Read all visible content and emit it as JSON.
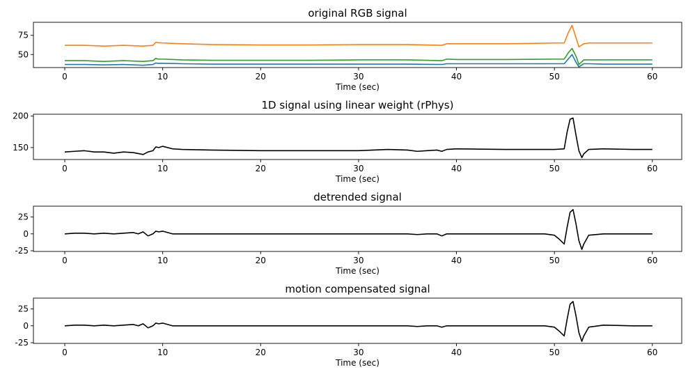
{
  "chart_data": [
    {
      "type": "line",
      "title": "original RGB signal",
      "xlabel": "Time (sec)",
      "ylabel": "",
      "xlim": [
        -3.2,
        63
      ],
      "ylim": [
        33,
        92
      ],
      "xticks": [
        0,
        10,
        20,
        30,
        40,
        50,
        60
      ],
      "yticks": [
        50,
        75
      ],
      "grid": false,
      "series": [
        {
          "color": "#1f77b4",
          "x": [
            0,
            2,
            4,
            6,
            8,
            9,
            9.3,
            9.5,
            10,
            12,
            15,
            20,
            25,
            30,
            35,
            38.5,
            39,
            40,
            45,
            50,
            51,
            51.4,
            51.8,
            52.2,
            52.5,
            53,
            53.5,
            55,
            58,
            60
          ],
          "y": [
            37,
            37,
            36.5,
            37,
            36,
            37,
            39,
            38.5,
            38.5,
            38,
            37.5,
            37.5,
            37.5,
            37.5,
            37.5,
            37,
            38,
            38,
            38,
            38,
            38,
            44,
            50,
            40,
            34,
            38,
            38,
            37.5,
            37.5,
            37.5
          ]
        },
        {
          "color": "#2ca02c",
          "x": [
            0,
            2,
            4,
            6,
            8,
            9,
            9.3,
            9.5,
            10,
            12,
            15,
            20,
            25,
            30,
            35,
            38.5,
            39,
            40,
            45,
            50,
            51,
            51.4,
            51.8,
            52.2,
            52.5,
            53,
            53.5,
            55,
            58,
            60
          ],
          "y": [
            42,
            42,
            41,
            42,
            41,
            42,
            45,
            44,
            44,
            43,
            42.5,
            42.5,
            42.5,
            43,
            43,
            42,
            44,
            43.5,
            43.5,
            44,
            44,
            52,
            58,
            48,
            37,
            43,
            43,
            43,
            43,
            43
          ]
        },
        {
          "color": "#ff7f0e",
          "x": [
            0,
            2,
            4,
            6,
            8,
            9,
            9.3,
            9.5,
            10,
            12,
            15,
            20,
            25,
            30,
            35,
            38.5,
            39,
            40,
            45,
            50,
            51,
            51.4,
            51.8,
            52.2,
            52.5,
            53,
            53.5,
            55,
            58,
            60
          ],
          "y": [
            62,
            62,
            61,
            62,
            61,
            62,
            66,
            65.5,
            65,
            64,
            63,
            62.5,
            62.5,
            63,
            63,
            62,
            64,
            64,
            64,
            65,
            65,
            78,
            88,
            72,
            60,
            64,
            65,
            65,
            65,
            65
          ]
        }
      ]
    },
    {
      "type": "line",
      "title": "1D signal using linear weight (rPhys)",
      "xlabel": "Time (sec)",
      "ylabel": "",
      "xlim": [
        -3.2,
        63
      ],
      "ylim": [
        131,
        203
      ],
      "xticks": [
        0,
        10,
        20,
        30,
        40,
        50,
        60
      ],
      "yticks": [
        150,
        200
      ],
      "grid": false,
      "series": [
        {
          "color": "#000000",
          "x": [
            0,
            1,
            2,
            3,
            4,
            5,
            6,
            7,
            8,
            8.5,
            9,
            9.3,
            9.6,
            10,
            11,
            12,
            15,
            20,
            25,
            30,
            33,
            35,
            36,
            37,
            38,
            38.5,
            39,
            40,
            45,
            50,
            51,
            51.3,
            51.6,
            51.9,
            52.2,
            52.5,
            52.8,
            53,
            53.5,
            55,
            58,
            60
          ],
          "y": [
            143,
            144,
            145,
            143,
            143,
            141,
            143,
            142,
            139,
            143,
            145,
            151,
            150,
            152,
            148,
            147,
            146,
            145,
            145,
            145,
            147,
            146,
            144,
            145,
            146,
            144,
            147,
            148,
            147,
            147,
            148,
            175,
            195,
            197,
            170,
            145,
            134,
            140,
            147,
            148,
            147,
            147
          ]
        }
      ]
    },
    {
      "type": "line",
      "title": "detrended signal",
      "xlabel": "Time (sec)",
      "ylabel": "",
      "xlim": [
        -3.2,
        63
      ],
      "ylim": [
        -26,
        41
      ],
      "xticks": [
        0,
        10,
        20,
        30,
        40,
        50,
        60
      ],
      "yticks": [
        -25,
        0,
        25
      ],
      "grid": false,
      "series": [
        {
          "color": "#000000",
          "x": [
            0,
            1,
            2,
            3,
            4,
            5,
            6,
            7,
            7.5,
            8,
            8.5,
            9,
            9.3,
            9.6,
            10,
            11,
            12,
            15,
            20,
            25,
            30,
            35,
            36,
            37,
            38,
            38.5,
            39,
            40,
            45,
            49,
            50,
            50.5,
            51,
            51.3,
            51.6,
            51.9,
            52.2,
            52.5,
            52.8,
            53,
            53.5,
            55,
            58,
            60
          ],
          "y": [
            0,
            1,
            1,
            0,
            1,
            0,
            1,
            2,
            0,
            3,
            -3,
            0,
            4,
            3,
            4,
            0,
            0,
            0,
            0,
            0,
            0,
            0,
            -1,
            0,
            0,
            -3,
            0,
            0,
            0,
            0,
            -2,
            -8,
            -15,
            10,
            32,
            36,
            15,
            -10,
            -23,
            -15,
            -2,
            0,
            0,
            0
          ]
        }
      ]
    },
    {
      "type": "line",
      "title": "motion compensated signal",
      "xlabel": "Time (sec)",
      "ylabel": "",
      "xlim": [
        -3.2,
        63
      ],
      "ylim": [
        -26,
        41
      ],
      "xticks": [
        0,
        10,
        20,
        30,
        40,
        50,
        60
      ],
      "yticks": [
        -25,
        0,
        25
      ],
      "grid": false,
      "series": [
        {
          "color": "#000000",
          "x": [
            0,
            1,
            2,
            3,
            4,
            5,
            6,
            7,
            7.5,
            8,
            8.5,
            9,
            9.3,
            9.6,
            10,
            11,
            12,
            15,
            20,
            25,
            30,
            35,
            36,
            37,
            38,
            38.5,
            39,
            40,
            45,
            49,
            50,
            50.5,
            51,
            51.3,
            51.6,
            51.9,
            52.2,
            52.5,
            52.8,
            53,
            53.5,
            55,
            58,
            60
          ],
          "y": [
            0,
            1,
            1,
            0,
            1,
            0,
            1,
            2,
            0,
            3,
            -3,
            0,
            4,
            3,
            4,
            0,
            0,
            0,
            0,
            0,
            0,
            0,
            -1,
            0,
            0,
            -2,
            0,
            0,
            0,
            0,
            -2,
            -8,
            -15,
            10,
            32,
            36,
            15,
            -10,
            -23,
            -15,
            -2,
            1,
            0,
            0
          ]
        }
      ]
    }
  ]
}
